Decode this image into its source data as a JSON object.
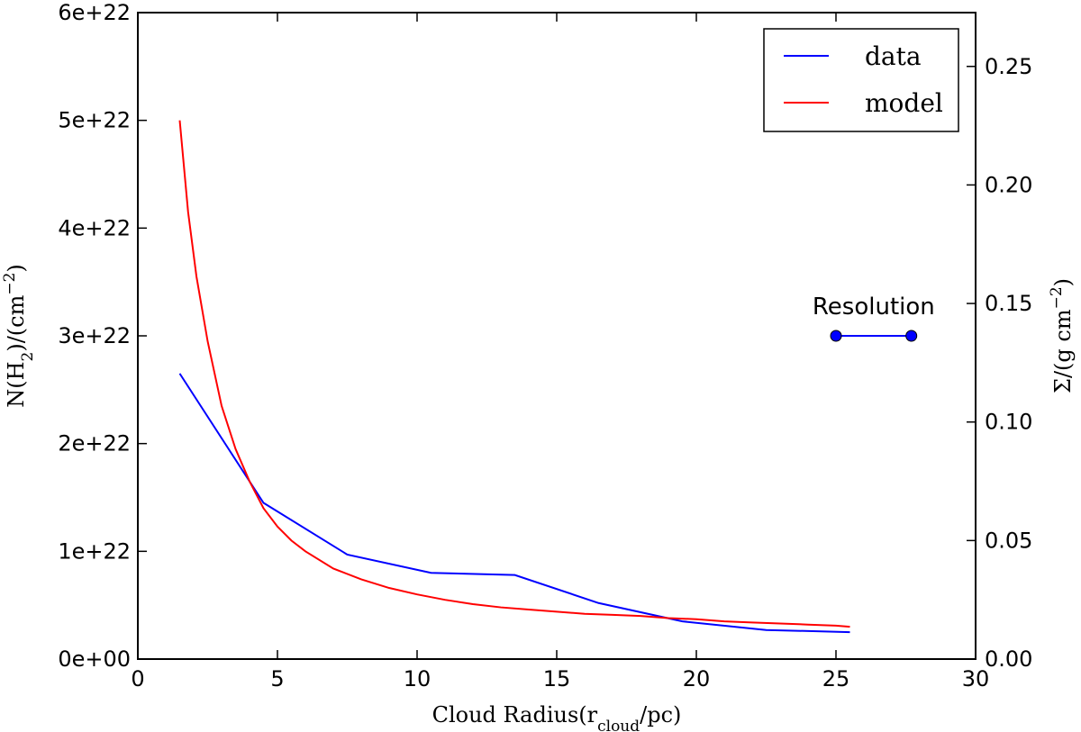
{
  "chart_data": {
    "type": "line",
    "title": "",
    "xlabel": "Cloud Radius(r_cloud/pc)",
    "ylabel": "N(H_2)/(cm^-2)",
    "y2label": "Σ/(g cm^-2)",
    "xlim": [
      0,
      30
    ],
    "ylim": [
      0,
      6e+22
    ],
    "y2lim": [
      0,
      0.2727
    ],
    "xticks": [
      0,
      5,
      10,
      15,
      20,
      25,
      30
    ],
    "xtick_labels": [
      "0",
      "5",
      "10",
      "15",
      "20",
      "25",
      "30"
    ],
    "yticks": [
      0,
      1e+22,
      2e+22,
      3e+22,
      4e+22,
      5e+22,
      6e+22
    ],
    "ytick_labels": [
      "0e+00",
      "1e+22",
      "2e+22",
      "3e+22",
      "4e+22",
      "5e+22",
      "6e+22"
    ],
    "y2ticks": [
      0,
      0.05,
      0.1,
      0.15,
      0.2,
      0.25
    ],
    "y2tick_labels": [
      "0.00",
      "0.05",
      "0.10",
      "0.15",
      "0.20",
      "0.25"
    ],
    "grid": false,
    "legend": {
      "placement": "top-right",
      "entries": [
        "data",
        "model"
      ]
    },
    "series": [
      {
        "name": "data",
        "color": "#0000ff",
        "x": [
          1.5,
          4.5,
          7.5,
          10.5,
          13.5,
          16.5,
          19.5,
          22.5,
          25.5
        ],
        "y": [
          2.65e+22,
          1.45e+22,
          9.7e+21,
          8e+21,
          7.8e+21,
          5.2e+21,
          3.5e+21,
          2.7e+21,
          2.5e+21
        ]
      },
      {
        "name": "model",
        "color": "#ff0000",
        "x": [
          1.5,
          1.8,
          2.1,
          2.5,
          3.0,
          3.5,
          4.0,
          4.5,
          5.0,
          5.5,
          6.0,
          7.0,
          8.0,
          9.0,
          10.0,
          11.0,
          12.0,
          13.0,
          14.0,
          15.0,
          16.0,
          17.0,
          18.0,
          19.0,
          20.0,
          21.0,
          22.0,
          23.0,
          24.0,
          25.0,
          25.5
        ],
        "y": [
          5e+22,
          4.15e+22,
          3.55e+22,
          2.95e+22,
          2.35e+22,
          1.95e+22,
          1.65e+22,
          1.4e+22,
          1.23e+22,
          1.1e+22,
          1e+22,
          8.4e+21,
          7.4e+21,
          6.6e+21,
          6e+21,
          5.5e+21,
          5.1e+21,
          4.8e+21,
          4.6e+21,
          4.4e+21,
          4.2e+21,
          4.1e+21,
          4e+21,
          3.8e+21,
          3.7e+21,
          3.5e+21,
          3.4e+21,
          3.3e+21,
          3.2e+21,
          3.1e+21,
          3e+21
        ]
      }
    ],
    "annotation": {
      "text": "Resolution",
      "color": "#0000ff",
      "x": [
        25.0,
        27.7
      ],
      "y": [
        3e+22,
        3e+22
      ]
    }
  }
}
